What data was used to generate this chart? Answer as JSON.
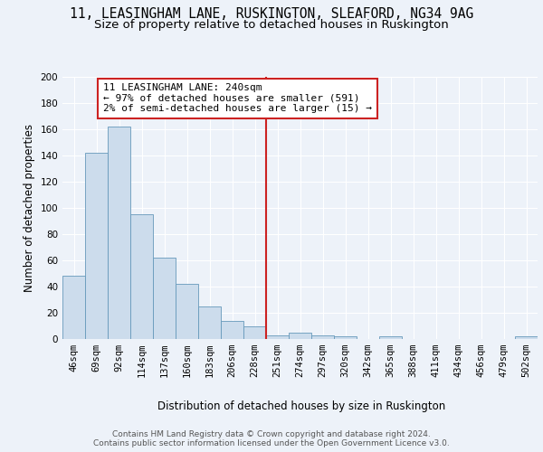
{
  "title1": "11, LEASINGHAM LANE, RUSKINGTON, SLEAFORD, NG34 9AG",
  "title2": "Size of property relative to detached houses in Ruskington",
  "xlabel": "Distribution of detached houses by size in Ruskington",
  "ylabel": "Number of detached properties",
  "bar_labels": [
    "46sqm",
    "69sqm",
    "92sqm",
    "114sqm",
    "137sqm",
    "160sqm",
    "183sqm",
    "206sqm",
    "228sqm",
    "251sqm",
    "274sqm",
    "297sqm",
    "320sqm",
    "342sqm",
    "365sqm",
    "388sqm",
    "411sqm",
    "434sqm",
    "456sqm",
    "479sqm",
    "502sqm"
  ],
  "bar_heights": [
    48,
    142,
    162,
    95,
    62,
    42,
    25,
    14,
    10,
    3,
    5,
    3,
    2,
    0,
    2,
    0,
    0,
    0,
    0,
    0,
    2
  ],
  "bar_color": "#ccdcec",
  "bar_edge_color": "#6699bb",
  "vline_color": "#cc2222",
  "annotation_text": "11 LEASINGHAM LANE: 240sqm\n← 97% of detached houses are smaller (591)\n2% of semi-detached houses are larger (15) →",
  "annotation_box_color": "#ffffff",
  "annotation_edge_color": "#cc2222",
  "ylim": [
    0,
    200
  ],
  "yticks": [
    0,
    20,
    40,
    60,
    80,
    100,
    120,
    140,
    160,
    180,
    200
  ],
  "footnote": "Contains HM Land Registry data © Crown copyright and database right 2024.\nContains public sector information licensed under the Open Government Licence v3.0.",
  "bg_color": "#edf2f9",
  "plot_bg_color": "#edf2f9",
  "grid_color": "#ffffff",
  "title1_fontsize": 10.5,
  "title2_fontsize": 9.5,
  "axis_label_fontsize": 8.5,
  "tick_fontsize": 7.5,
  "annotation_fontsize": 8,
  "footnote_fontsize": 6.5
}
